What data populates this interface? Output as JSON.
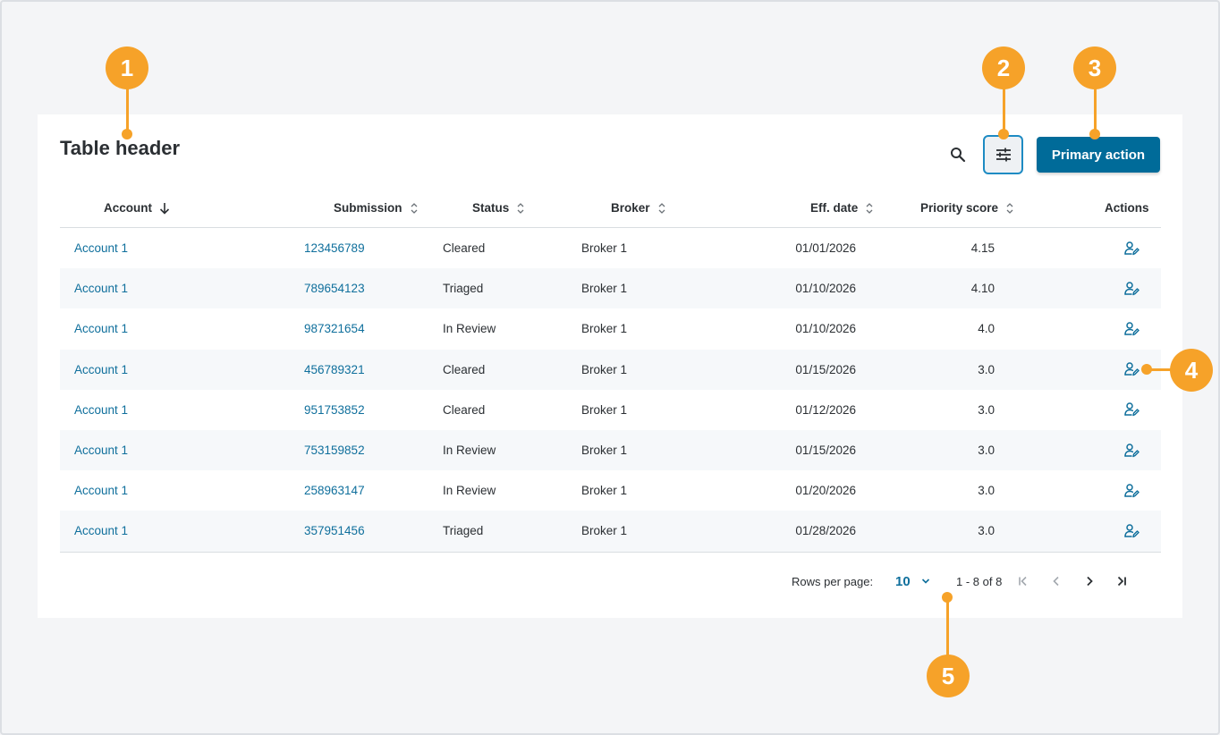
{
  "table": {
    "title": "Table header",
    "primary_action_label": "Primary action",
    "columns": [
      "Account",
      "Submission",
      "Status",
      "Broker",
      "Eff. date",
      "Priority score",
      "Actions"
    ],
    "rows": [
      {
        "account": "Account 1",
        "submission": "123456789",
        "status": "Cleared",
        "broker": "Broker 1",
        "eff_date": "01/01/2026",
        "priority": "4.15"
      },
      {
        "account": "Account 1",
        "submission": "789654123",
        "status": "Triaged",
        "broker": "Broker 1",
        "eff_date": "01/10/2026",
        "priority": "4.10"
      },
      {
        "account": "Account 1",
        "submission": "987321654",
        "status": "In Review",
        "broker": "Broker 1",
        "eff_date": "01/10/2026",
        "priority": "4.0"
      },
      {
        "account": "Account 1",
        "submission": "456789321",
        "status": "Cleared",
        "broker": "Broker 1",
        "eff_date": "01/15/2026",
        "priority": "3.0"
      },
      {
        "account": "Account 1",
        "submission": "951753852",
        "status": "Cleared",
        "broker": "Broker 1",
        "eff_date": "01/12/2026",
        "priority": "3.0"
      },
      {
        "account": "Account 1",
        "submission": "753159852",
        "status": "In Review",
        "broker": "Broker 1",
        "eff_date": "01/15/2026",
        "priority": "3.0"
      },
      {
        "account": "Account 1",
        "submission": "258963147",
        "status": "In Review",
        "broker": "Broker 1",
        "eff_date": "01/20/2026",
        "priority": "3.0"
      },
      {
        "account": "Account 1",
        "submission": "357951456",
        "status": "Triaged",
        "broker": "Broker 1",
        "eff_date": "01/28/2026",
        "priority": "3.0"
      }
    ]
  },
  "pagination": {
    "rows_per_page_label": "Rows per page:",
    "rows_per_page_value": "10",
    "range_text": "1 - 8 of 8"
  },
  "callouts": [
    "1",
    "2",
    "3",
    "4",
    "5"
  ],
  "icons": {
    "search": "search-icon",
    "filter": "sliders-icon",
    "row_action": "user-edit-icon",
    "first": "first-page-icon",
    "prev": "chevron-left-icon",
    "next": "chevron-right-icon",
    "last": "last-page-icon"
  },
  "colors": {
    "primary": "#006b99",
    "link": "#0f6f9c",
    "callout": "#f6a229",
    "focus_border": "#1e8bc3"
  }
}
